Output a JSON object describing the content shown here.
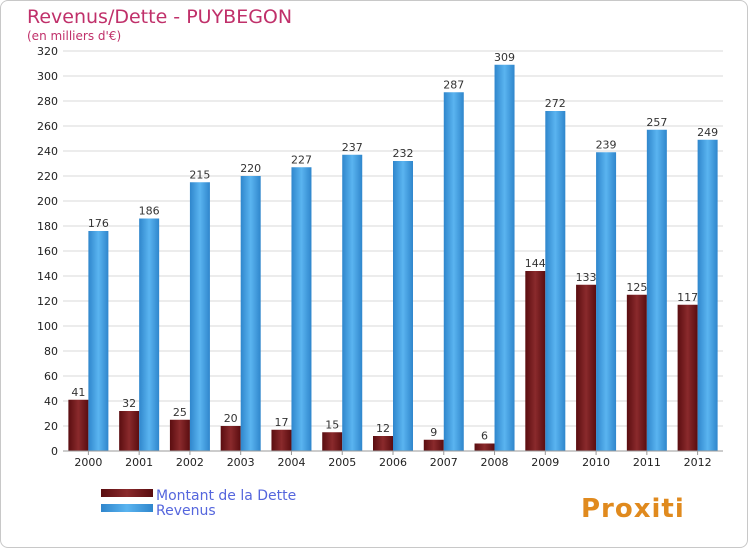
{
  "chart_data": {
    "type": "bar",
    "title": "Revenus/Dette - PUYBEGON",
    "subtitle": "(en milliers d'€)",
    "categories": [
      "2000",
      "2001",
      "2002",
      "2003",
      "2004",
      "2005",
      "2006",
      "2007",
      "2008",
      "2009",
      "2010",
      "2011",
      "2012"
    ],
    "series": [
      {
        "name": "Montant de la Dette",
        "color": "#7a1a1c",
        "values": [
          41,
          32,
          25,
          20,
          17,
          15,
          12,
          9,
          6,
          144,
          133,
          125,
          117
        ]
      },
      {
        "name": "Revenus",
        "color": "#4aa3e6",
        "values": [
          176,
          186,
          215,
          220,
          227,
          237,
          232,
          287,
          309,
          272,
          239,
          257,
          249
        ]
      }
    ],
    "ylim": [
      0,
      320
    ],
    "ytick_step": 20,
    "grid": true,
    "legend": "bottom-left",
    "colors": {
      "title": "#c0306a",
      "legend_text": "#5566dd",
      "grid": "#d9d9d9"
    }
  },
  "watermark": "Proxiti"
}
